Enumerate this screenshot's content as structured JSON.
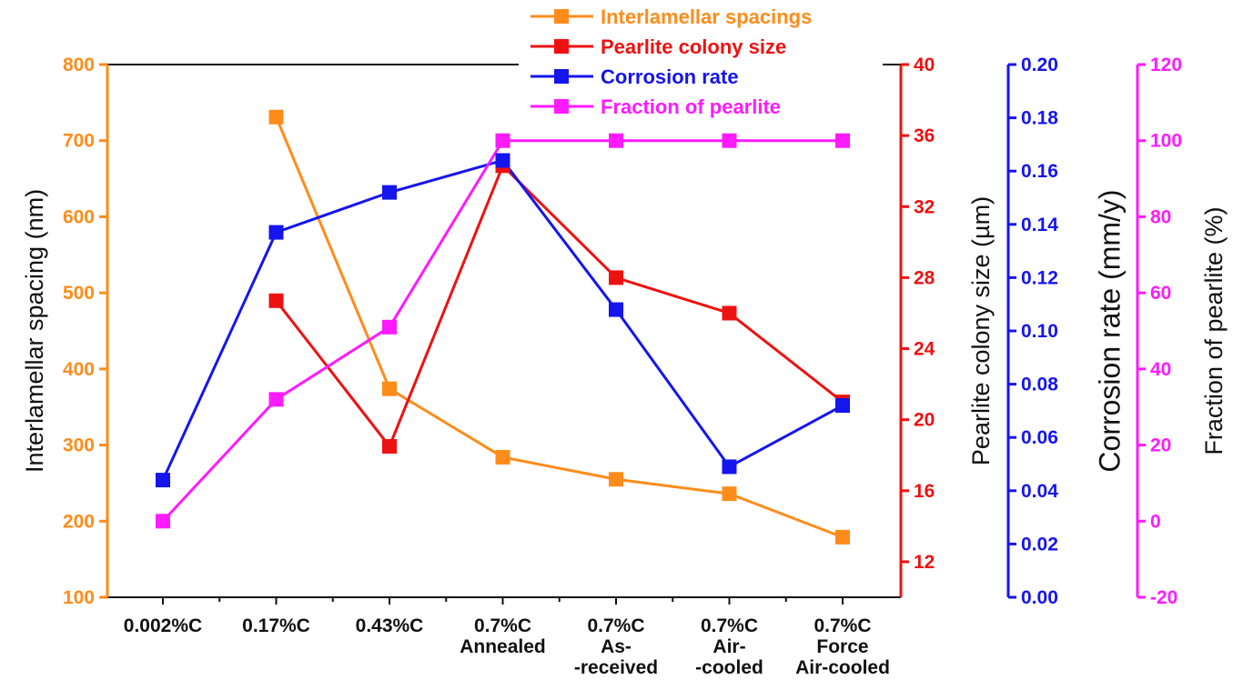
{
  "chart_data": {
    "type": "line",
    "categories": [
      [
        "0.002%C"
      ],
      [
        "0.17%C"
      ],
      [
        "0.43%C"
      ],
      [
        "0.7%C",
        "Annealed"
      ],
      [
        "0.7%C",
        "As-",
        "-received"
      ],
      [
        "0.7%C",
        "Air-",
        "-cooled"
      ],
      [
        "0.7%C",
        "Force",
        "Air-cooled"
      ]
    ],
    "axes": {
      "left": {
        "label": "Interlamellar spacing (nm)",
        "ylim": [
          100,
          800
        ],
        "ticks": [
          100,
          200,
          300,
          400,
          500,
          600,
          700,
          800
        ],
        "color": "#ff8c1a"
      },
      "right1": {
        "label": "Pearlite colony size (µm)",
        "ylim": [
          10,
          40
        ],
        "ticks": [
          12,
          16,
          20,
          24,
          28,
          32,
          36,
          40
        ],
        "color": "#ee1111"
      },
      "right2": {
        "label": "Corrosion rate (mm/y)",
        "ylim": [
          0,
          0.2
        ],
        "ticks": [
          "0.00",
          "0.02",
          "0.04",
          "0.06",
          "0.08",
          "0.10",
          "0.12",
          "0.14",
          "0.16",
          "0.18",
          "0.20"
        ],
        "color": "#1515ee"
      },
      "right3": {
        "label": "Fraction of pearlite (%)",
        "ylim": [
          -20,
          120
        ],
        "ticks": [
          -20,
          0,
          20,
          40,
          60,
          80,
          100,
          120
        ],
        "color": "#ff1aff"
      }
    },
    "series": [
      {
        "name": "Interlamellar spacings",
        "axis": "left",
        "color": "#ff8c1a",
        "values": [
          null,
          731,
          374,
          284,
          255,
          236,
          179
        ]
      },
      {
        "name": "Pearlite colony size",
        "axis": "right1",
        "color": "#ee1111",
        "values": [
          null,
          26.7,
          18.5,
          34.3,
          28.0,
          26.0,
          21.0
        ]
      },
      {
        "name": "Corrosion rate",
        "axis": "right2",
        "color": "#1515ee",
        "values": [
          0.044,
          0.137,
          0.152,
          0.164,
          0.108,
          0.049,
          0.072
        ]
      },
      {
        "name": "Fraction of pearlite",
        "axis": "right3",
        "color": "#ff1aff",
        "values": [
          0,
          32,
          51,
          100,
          100,
          100,
          100
        ]
      }
    ]
  }
}
